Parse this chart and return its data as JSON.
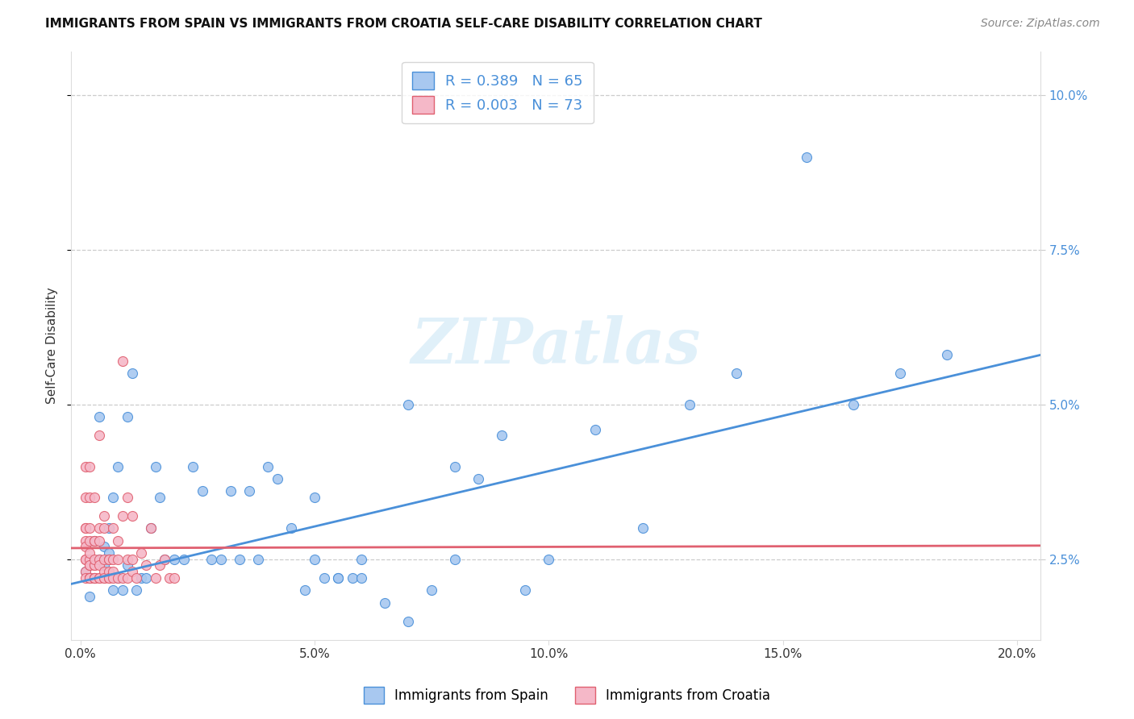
{
  "title": "IMMIGRANTS FROM SPAIN VS IMMIGRANTS FROM CROATIA SELF-CARE DISABILITY CORRELATION CHART",
  "source": "Source: ZipAtlas.com",
  "xlabel_vals": [
    0.0,
    0.05,
    0.1,
    0.15,
    0.2
  ],
  "ylabel": "Self-Care Disability",
  "ylabel_vals": [
    0.025,
    0.05,
    0.075,
    0.1
  ],
  "xlim": [
    -0.002,
    0.205
  ],
  "ylim": [
    0.012,
    0.107
  ],
  "spain_color": "#a8c8f0",
  "croatia_color": "#f5b8c8",
  "spain_line_color": "#4a90d9",
  "croatia_line_color": "#e06070",
  "R_spain": 0.389,
  "N_spain": 65,
  "R_croatia": 0.003,
  "N_croatia": 73,
  "legend_label_spain": "Immigrants from Spain",
  "legend_label_croatia": "Immigrants from Croatia",
  "watermark": "ZIPatlas",
  "spain_x": [
    0.001,
    0.002,
    0.003,
    0.003,
    0.004,
    0.004,
    0.005,
    0.005,
    0.006,
    0.006,
    0.007,
    0.007,
    0.008,
    0.008,
    0.009,
    0.01,
    0.01,
    0.011,
    0.012,
    0.013,
    0.014,
    0.015,
    0.016,
    0.017,
    0.018,
    0.02,
    0.022,
    0.024,
    0.026,
    0.028,
    0.03,
    0.032,
    0.034,
    0.036,
    0.038,
    0.04,
    0.042,
    0.045,
    0.048,
    0.05,
    0.052,
    0.055,
    0.058,
    0.06,
    0.065,
    0.07,
    0.075,
    0.08,
    0.085,
    0.09,
    0.095,
    0.1,
    0.11,
    0.12,
    0.13,
    0.14,
    0.155,
    0.165,
    0.175,
    0.185,
    0.05,
    0.055,
    0.06,
    0.07,
    0.08
  ],
  "spain_y": [
    0.023,
    0.019,
    0.022,
    0.028,
    0.025,
    0.048,
    0.024,
    0.027,
    0.026,
    0.03,
    0.02,
    0.035,
    0.022,
    0.04,
    0.02,
    0.024,
    0.048,
    0.055,
    0.02,
    0.022,
    0.022,
    0.03,
    0.04,
    0.035,
    0.025,
    0.025,
    0.025,
    0.04,
    0.036,
    0.025,
    0.025,
    0.036,
    0.025,
    0.036,
    0.025,
    0.04,
    0.038,
    0.03,
    0.02,
    0.035,
    0.022,
    0.022,
    0.022,
    0.022,
    0.018,
    0.015,
    0.02,
    0.025,
    0.038,
    0.045,
    0.02,
    0.025,
    0.046,
    0.03,
    0.05,
    0.055,
    0.09,
    0.05,
    0.055,
    0.058,
    0.025,
    0.022,
    0.025,
    0.05,
    0.04
  ],
  "croatia_x": [
    0.001,
    0.001,
    0.001,
    0.001,
    0.001,
    0.001,
    0.001,
    0.001,
    0.001,
    0.001,
    0.002,
    0.002,
    0.002,
    0.002,
    0.002,
    0.002,
    0.002,
    0.002,
    0.002,
    0.002,
    0.002,
    0.003,
    0.003,
    0.003,
    0.003,
    0.003,
    0.003,
    0.003,
    0.003,
    0.003,
    0.004,
    0.004,
    0.004,
    0.004,
    0.004,
    0.004,
    0.004,
    0.005,
    0.005,
    0.005,
    0.005,
    0.005,
    0.005,
    0.006,
    0.006,
    0.006,
    0.006,
    0.006,
    0.007,
    0.007,
    0.007,
    0.007,
    0.008,
    0.008,
    0.008,
    0.009,
    0.009,
    0.01,
    0.01,
    0.011,
    0.011,
    0.012,
    0.013,
    0.014,
    0.015,
    0.016,
    0.017,
    0.018,
    0.019,
    0.02,
    0.009,
    0.01,
    0.011
  ],
  "croatia_y": [
    0.025,
    0.028,
    0.03,
    0.023,
    0.025,
    0.027,
    0.03,
    0.04,
    0.022,
    0.035,
    0.022,
    0.024,
    0.025,
    0.028,
    0.035,
    0.022,
    0.024,
    0.026,
    0.03,
    0.022,
    0.04,
    0.022,
    0.024,
    0.028,
    0.035,
    0.022,
    0.024,
    0.028,
    0.022,
    0.025,
    0.028,
    0.022,
    0.025,
    0.03,
    0.022,
    0.024,
    0.045,
    0.022,
    0.023,
    0.025,
    0.03,
    0.022,
    0.032,
    0.022,
    0.025,
    0.023,
    0.025,
    0.022,
    0.023,
    0.025,
    0.03,
    0.022,
    0.022,
    0.025,
    0.028,
    0.022,
    0.032,
    0.022,
    0.025,
    0.023,
    0.025,
    0.022,
    0.026,
    0.024,
    0.03,
    0.022,
    0.024,
    0.025,
    0.022,
    0.022,
    0.057,
    0.035,
    0.032
  ],
  "spain_trend_x": [
    -0.002,
    0.205
  ],
  "spain_trend_y": [
    0.021,
    0.058
  ],
  "croatia_trend_x": [
    -0.002,
    0.205
  ],
  "croatia_trend_y": [
    0.0268,
    0.0272
  ]
}
